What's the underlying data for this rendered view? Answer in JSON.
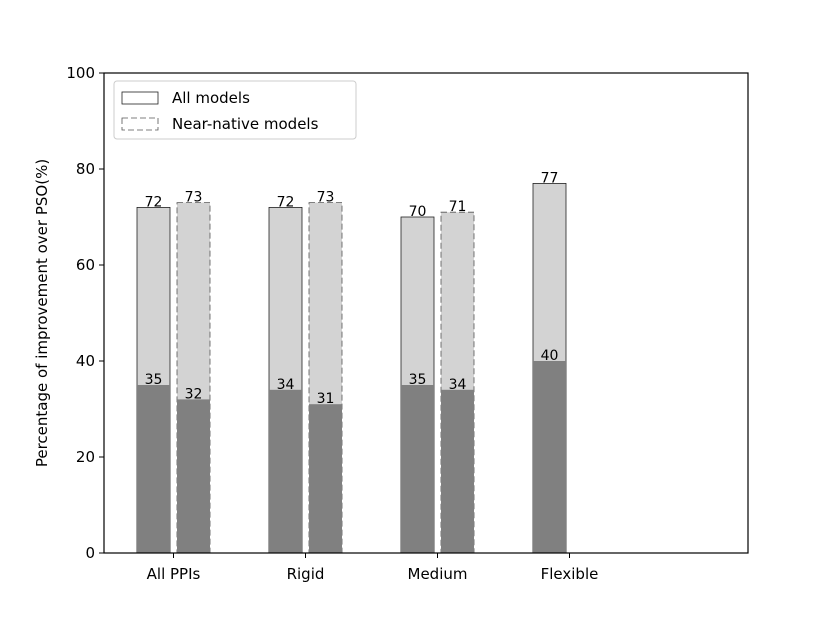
{
  "chart_data": {
    "type": "bar",
    "title": "",
    "xlabel": "",
    "ylabel": "Percentage of improvement over PSO(%)",
    "ylim": [
      0,
      100
    ],
    "yticks": [
      0,
      20,
      40,
      60,
      80,
      100
    ],
    "categories": [
      "All PPIs",
      "Rigid",
      "Medium",
      "Flexible"
    ],
    "legend": {
      "placement": "top-left",
      "entries": [
        "All models",
        "Near-native models"
      ]
    },
    "series": [
      {
        "name": "All models",
        "style": "solid",
        "totals": [
          72,
          72,
          70,
          77
        ],
        "lower": [
          35,
          34,
          35,
          40
        ]
      },
      {
        "name": "Near-native models",
        "style": "dashed",
        "totals": [
          73,
          73,
          71,
          null
        ],
        "lower": [
          32,
          31,
          34,
          null
        ]
      }
    ],
    "colors": {
      "upper_fill": "#d3d3d3",
      "lower_fill": "#808080",
      "edge": "#000000"
    },
    "grid": false
  }
}
